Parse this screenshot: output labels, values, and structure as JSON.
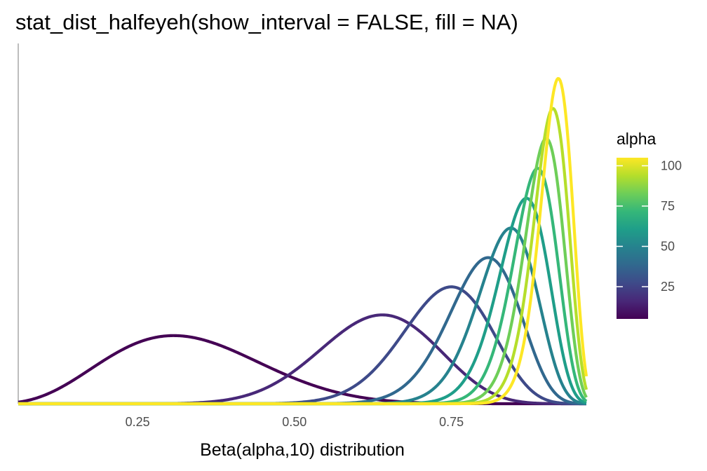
{
  "chart_data": {
    "type": "line",
    "title": "stat_dist_halfeyeh(show_interval = FALSE, fill = NA)",
    "xlabel": "Beta(alpha,10) distribution",
    "ylabel": "",
    "xlim": [
      0.06,
      0.965
    ],
    "x_ticks": [
      0.25,
      0.5,
      0.75
    ],
    "x_tick_labels": [
      "0.25",
      "0.50",
      "0.75"
    ],
    "beta": 10,
    "series": [
      {
        "alpha": 5,
        "color": "#440154"
      },
      {
        "alpha": 17,
        "color": "#482878"
      },
      {
        "alpha": 28,
        "color": "#3e4a89"
      },
      {
        "alpha": 39,
        "color": "#31688e"
      },
      {
        "alpha": 50,
        "color": "#26828e"
      },
      {
        "alpha": 61,
        "color": "#1f9e89"
      },
      {
        "alpha": 72,
        "color": "#35b779"
      },
      {
        "alpha": 83,
        "color": "#6ece58"
      },
      {
        "alpha": 94,
        "color": "#b5de2b"
      },
      {
        "alpha": 105,
        "color": "#fde725"
      }
    ],
    "legend": {
      "title": "alpha",
      "position": "right",
      "min": 5,
      "max": 105,
      "ticks": [
        25,
        50,
        75,
        100
      ],
      "tick_labels": [
        "25",
        "50",
        "75",
        "100"
      ],
      "colors": [
        "#440154",
        "#482878",
        "#3e4a89",
        "#31688e",
        "#26828e",
        "#1f9e89",
        "#35b779",
        "#6ece58",
        "#b5de2b",
        "#fde725"
      ]
    },
    "grid": false
  }
}
